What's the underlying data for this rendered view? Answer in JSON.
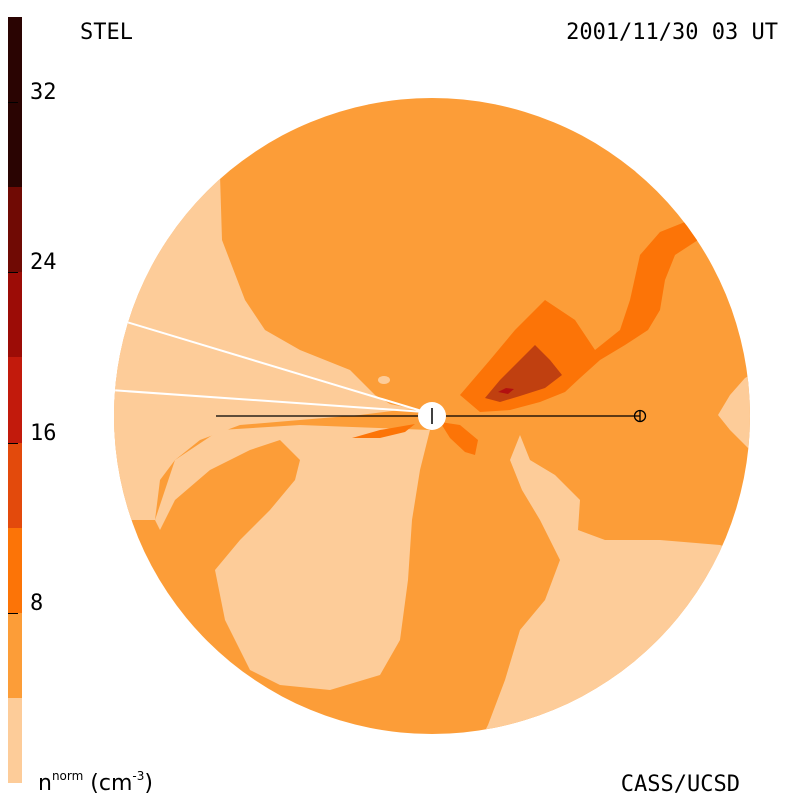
{
  "header": {
    "site": "STEL",
    "timestamp": "2001/11/30 03 UT"
  },
  "footer": {
    "credit": "CASS/UCSD",
    "quantity": "n",
    "quantity_superscript": "norm",
    "unit_text": " (cm",
    "unit_exponent": "-3",
    "unit_close": ")"
  },
  "colorbar": {
    "ticks": [
      "32",
      "24",
      "16",
      "8"
    ],
    "tick_values": [
      32,
      24,
      16,
      8
    ],
    "range": [
      0,
      36
    ],
    "levels": [
      {
        "from": 0,
        "to": 4,
        "color": "#fdcc99"
      },
      {
        "from": 4,
        "to": 8,
        "color": "#fc9d38"
      },
      {
        "from": 8,
        "to": 12,
        "color": "#fc7407"
      },
      {
        "from": 12,
        "to": 16,
        "color": "#e34a0c"
      },
      {
        "from": 16,
        "to": 20,
        "color": "#c21a0c"
      },
      {
        "from": 20,
        "to": 24,
        "color": "#9c0c06"
      },
      {
        "from": 24,
        "to": 28,
        "color": "#700a04"
      },
      {
        "from": 28,
        "to": 36,
        "color": "#2a0402"
      }
    ]
  },
  "map": {
    "background_color": "#fc9d38",
    "low_color": "#fdcc99",
    "mid_color": "#fc7407",
    "high_color": "#c04010",
    "peak_color": "#b21010",
    "markers": [
      "sun-marker",
      "earth-marker"
    ]
  }
}
